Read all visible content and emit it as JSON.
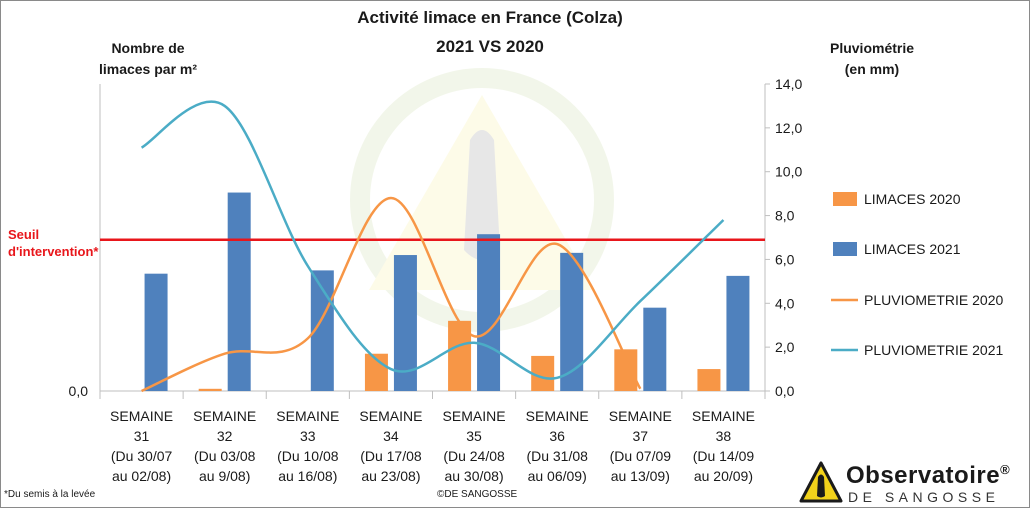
{
  "chart_data": {
    "type": "bar",
    "title": "Activité limace en France (Colza)",
    "subtitle": "2021 VS 2020",
    "ylabel_left": "Nombre de limaces par m²",
    "ylabel_right": "Pluviométrie (en mm)",
    "left_axis_label": "0,0",
    "right_ylim": [
      0,
      14
    ],
    "right_ticks": [
      "0,0",
      "2,0",
      "4,0",
      "6,0",
      "8,0",
      "10,0",
      "12,0",
      "14,0"
    ],
    "threshold_label": "Seuil d'intervention*",
    "threshold_value_right_scale": 6.9,
    "categories": [
      [
        "SEMAINE",
        "31",
        "(Du 30/07",
        "au 02/08)"
      ],
      [
        "SEMAINE",
        "32",
        "(Du 03/08",
        "au 9/08)"
      ],
      [
        "SEMAINE",
        "33",
        "(Du 10/08",
        "au 16/08)"
      ],
      [
        "SEMAINE",
        "34",
        "(Du 17/08",
        "au 23/08)"
      ],
      [
        "SEMAINE",
        "35",
        "(Du 24/08",
        "au 30/08)"
      ],
      [
        "SEMAINE",
        "36",
        "(Du 31/08",
        "au 06/09)"
      ],
      [
        "SEMAINE",
        "37",
        "(Du 07/09",
        "au 13/09)"
      ],
      [
        "SEMAINE",
        "38",
        "(Du 14/09",
        "au 20/09)"
      ]
    ],
    "series": [
      {
        "name": "LIMACES 2020",
        "kind": "bar",
        "color": "#f79646",
        "values": [
          0,
          0.1,
          0,
          1.7,
          3.2,
          1.6,
          1.9,
          1.0
        ]
      },
      {
        "name": "LIMACES 2021",
        "kind": "bar",
        "color": "#4f81bd",
        "values": [
          5.35,
          9.05,
          5.5,
          6.2,
          7.15,
          6.3,
          3.8,
          5.25
        ]
      },
      {
        "name": "PLUVIOMETRIE 2020",
        "kind": "line",
        "color": "#f79646",
        "values": [
          0,
          1.7,
          2.4,
          8.8,
          2.5,
          6.7,
          0.1,
          null
        ]
      },
      {
        "name": "PLUVIOMETRIE 2021",
        "kind": "line",
        "color": "#4bacc6",
        "values": [
          11.1,
          13.0,
          5.7,
          1.0,
          2.2,
          0.6,
          4.1,
          7.8
        ]
      }
    ],
    "threshold_color": "#e8161b"
  },
  "footnote": "*Du semis à la levée",
  "copyright": "©DE SANGOSSE",
  "logo": {
    "name": "Observatoire",
    "registered": "®",
    "sub": "DE SANGOSSE"
  }
}
